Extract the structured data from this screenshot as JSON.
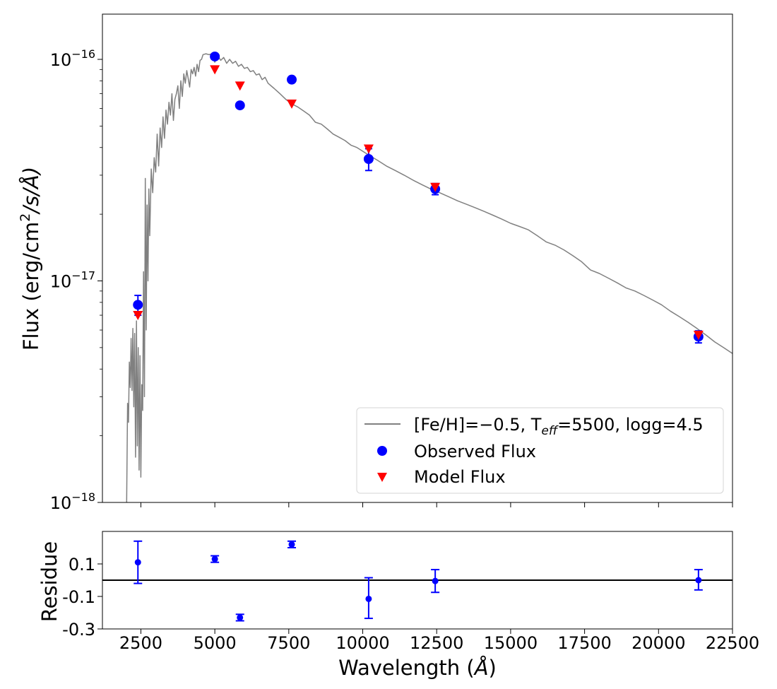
{
  "chart_data": [
    {
      "panel": "sed",
      "type": "line+scatter",
      "y_scale": "log",
      "xlim": [
        1200,
        22500
      ],
      "ylim": [
        1e-18,
        1.6e-16
      ],
      "ylabel": {
        "prefix": "Flux (erg/cm",
        "sup": "2",
        "suffix": "/s/Å)"
      },
      "y_ticks": [
        {
          "value": 1e-18,
          "base": "10",
          "exp": "−18"
        },
        {
          "value": 1e-17,
          "base": "10",
          "exp": "−17"
        },
        {
          "value": 1e-16,
          "base": "10",
          "exp": "−16"
        }
      ],
      "x_ticks": [
        2500,
        5000,
        7500,
        10000,
        12500,
        15000,
        17500,
        20000,
        22500
      ],
      "legend": {
        "position": "lower-right",
        "model_label": {
          "a": "[Fe/H]=−0.5, T",
          "sub": "eff",
          "b": "=5500, logg=4.5"
        },
        "observed_label": "Observed Flux",
        "predicted_label": "Model Flux"
      },
      "model_spectrum": {
        "color": "#808080",
        "x": [
          2020,
          2050,
          2080,
          2110,
          2140,
          2170,
          2200,
          2230,
          2260,
          2290,
          2320,
          2350,
          2380,
          2410,
          2440,
          2470,
          2500,
          2530,
          2560,
          2590,
          2620,
          2650,
          2680,
          2710,
          2740,
          2770,
          2800,
          2850,
          2900,
          2950,
          3000,
          3050,
          3100,
          3150,
          3200,
          3250,
          3300,
          3350,
          3400,
          3450,
          3500,
          3550,
          3600,
          3650,
          3700,
          3750,
          3800,
          3850,
          3900,
          3950,
          4000,
          4050,
          4100,
          4150,
          4200,
          4250,
          4300,
          4350,
          4400,
          4450,
          4500,
          4550,
          4600,
          4700,
          4800,
          4900,
          5000,
          5100,
          5200,
          5300,
          5400,
          5500,
          5600,
          5700,
          5800,
          5900,
          6000,
          6100,
          6200,
          6300,
          6400,
          6500,
          6600,
          6700,
          6800,
          7000,
          7200,
          7400,
          7600,
          7800,
          8000,
          8200,
          8400,
          8600,
          8800,
          9000,
          9200,
          9400,
          9600,
          9800,
          10000,
          10200,
          10500,
          10800,
          11100,
          11400,
          11700,
          12000,
          12300,
          12600,
          12900,
          13200,
          13500,
          13800,
          14100,
          14400,
          14700,
          15000,
          15300,
          15600,
          15900,
          16200,
          16500,
          16800,
          17100,
          17400,
          17700,
          18000,
          18300,
          18600,
          18900,
          19200,
          19500,
          19800,
          20100,
          20400,
          20700,
          21000,
          21300,
          21600,
          21900,
          22200,
          22500
        ],
        "y": [
          1e-18,
          2.8e-18,
          2.3e-18,
          4.3e-18,
          3.3e-18,
          5.5e-18,
          3.2e-18,
          6.1e-18,
          2.7e-18,
          5.8e-18,
          1.6e-18,
          6.6e-18,
          1.8e-18,
          5e-18,
          1.4e-18,
          4.6e-18,
          1.3e-18,
          3.4e-18,
          2.6e-18,
          1.1e-17,
          3e-18,
          2.9e-17,
          6e-18,
          2.2e-17,
          1e-17,
          2.6e-17,
          1.6e-17,
          3.2e-17,
          2.5e-17,
          3.6e-17,
          3.1e-17,
          4.6e-17,
          3.3e-17,
          4.9e-17,
          4e-17,
          5.5e-17,
          4.4e-17,
          5.9e-17,
          5.1e-17,
          6.4e-17,
          5.6e-17,
          7e-17,
          5.3e-17,
          6.6e-17,
          7e-17,
          7.6e-17,
          6e-17,
          8e-17,
          6.8e-17,
          8.6e-17,
          7.8e-17,
          8.9e-17,
          8.2e-17,
          7.5e-17,
          9e-17,
          8.6e-17,
          9.2e-17,
          8.4e-17,
          9.5e-17,
          8.8e-17,
          9.9e-17,
          1e-16,
          1.05e-16,
          1.06e-16,
          1.05e-16,
          1.06e-16,
          9.7e-17,
          1.04e-16,
          9.9e-17,
          1.02e-16,
          9.6e-17,
          1e-16,
          9.6e-17,
          9.8e-17,
          9.3e-17,
          9.5e-17,
          9.1e-17,
          9.2e-17,
          8.8e-17,
          8.9e-17,
          8.5e-17,
          8.6e-17,
          8.1e-17,
          8.3e-17,
          7.8e-17,
          7.4e-17,
          7e-17,
          6.6e-17,
          6.3e-17,
          6.1e-17,
          5.85e-17,
          5.6e-17,
          5.2e-17,
          5.1e-17,
          4.85e-17,
          4.6e-17,
          4.45e-17,
          4.3e-17,
          4.1e-17,
          4e-17,
          3.85e-17,
          3.7e-17,
          3.5e-17,
          3.3e-17,
          3.15e-17,
          3e-17,
          2.85e-17,
          2.72e-17,
          2.6e-17,
          2.5e-17,
          2.4e-17,
          2.3e-17,
          2.22e-17,
          2.14e-17,
          2.06e-17,
          1.98e-17,
          1.9e-17,
          1.82e-17,
          1.76e-17,
          1.7e-17,
          1.6e-17,
          1.5e-17,
          1.45e-17,
          1.38e-17,
          1.3e-17,
          1.22e-17,
          1.12e-17,
          1.08e-17,
          1.03e-17,
          9.8e-18,
          9.3e-18,
          9e-18,
          8.6e-18,
          8.2e-18,
          7.8e-18,
          7.3e-18,
          6.9e-18,
          6.5e-18,
          6.1e-18,
          5.7e-18,
          5.3e-18,
          5e-18,
          4.7e-18
        ]
      },
      "observed": {
        "color": "#0000ff",
        "points": [
          {
            "x": 2400,
            "y": 7.8e-18,
            "err": 8e-19
          },
          {
            "x": 5000,
            "y": 1.03e-16,
            "err": 0
          },
          {
            "x": 5850,
            "y": 6.2e-17,
            "err": 0
          },
          {
            "x": 7600,
            "y": 8.1e-17,
            "err": 0
          },
          {
            "x": 10200,
            "y": 3.55e-17,
            "err": 4e-18
          },
          {
            "x": 12450,
            "y": 2.6e-17,
            "err": 1.5e-18
          },
          {
            "x": 21350,
            "y": 5.6e-18,
            "err": 3.5e-19
          }
        ]
      },
      "model_points": {
        "color": "#ff0000",
        "points": [
          {
            "x": 2400,
            "y": 7e-18
          },
          {
            "x": 5000,
            "y": 9e-17
          },
          {
            "x": 5850,
            "y": 7.6e-17
          },
          {
            "x": 7600,
            "y": 6.3e-17
          },
          {
            "x": 10200,
            "y": 3.95e-17
          },
          {
            "x": 12450,
            "y": 2.65e-17
          },
          {
            "x": 21350,
            "y": 5.7e-18
          }
        ]
      }
    },
    {
      "panel": "residue",
      "type": "scatter",
      "xlim": [
        1200,
        22500
      ],
      "ylim": [
        -0.3,
        0.3
      ],
      "ylabel": "Residue",
      "xlabel": {
        "prefix": "Wavelength (",
        "unit": "Å",
        "suffix": ")"
      },
      "y_ticks": [
        {
          "value": 0.1,
          "label": "0.1"
        },
        {
          "value": -0.1,
          "label": "-0.1"
        },
        {
          "value": -0.3,
          "label": "-0.3"
        }
      ],
      "x_ticks": [
        {
          "value": 2500,
          "label": "2500"
        },
        {
          "value": 5000,
          "label": "5000"
        },
        {
          "value": 7500,
          "label": "7500"
        },
        {
          "value": 10000,
          "label": "10000"
        },
        {
          "value": 12500,
          "label": "12500"
        },
        {
          "value": 15000,
          "label": "15000"
        },
        {
          "value": 17500,
          "label": "17500"
        },
        {
          "value": 20000,
          "label": "20000"
        },
        {
          "value": 22500,
          "label": "22500"
        }
      ],
      "zero_line": 0,
      "color": "#0000ff",
      "points": [
        {
          "x": 2400,
          "y": 0.11,
          "err_lo": 0.13,
          "err_hi": 0.13
        },
        {
          "x": 5000,
          "y": 0.13,
          "err_lo": 0.02,
          "err_hi": 0.02
        },
        {
          "x": 5850,
          "y": -0.23,
          "err_lo": 0.02,
          "err_hi": 0.02
        },
        {
          "x": 7600,
          "y": 0.22,
          "err_lo": 0.02,
          "err_hi": 0.02
        },
        {
          "x": 10200,
          "y": -0.115,
          "err_lo": 0.12,
          "err_hi": 0.13
        },
        {
          "x": 12450,
          "y": -0.005,
          "err_lo": 0.07,
          "err_hi": 0.07
        },
        {
          "x": 21350,
          "y": 0.0,
          "err_lo": 0.06,
          "err_hi": 0.065
        }
      ]
    }
  ]
}
